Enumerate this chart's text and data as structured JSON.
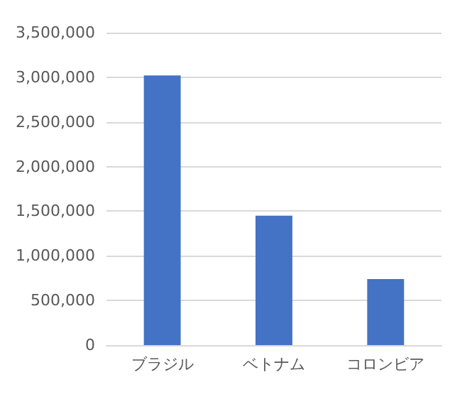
{
  "chart_data": {
    "type": "bar",
    "categories": [
      "ブラジル",
      "ベトナム",
      "コロンビア"
    ],
    "values": [
      3020000,
      1450000,
      740000
    ],
    "color": "#4472c4",
    "ylim": [
      0,
      3500000
    ],
    "yticks": [
      0,
      {
        "value": 500000,
        "label": "500,000"
      },
      {
        "value": 1000000,
        "label": "1,000,000"
      },
      {
        "value": 1500000,
        "label": "1,500,000"
      },
      {
        "value": 2000000,
        "label": "2,000,000"
      },
      {
        "value": 2500000,
        "label": "2,500,000"
      },
      {
        "value": 3000000,
        "label": "3,000,000"
      },
      {
        "value": 3500000,
        "label": "3,500,000"
      }
    ],
    "grid": "y"
  }
}
